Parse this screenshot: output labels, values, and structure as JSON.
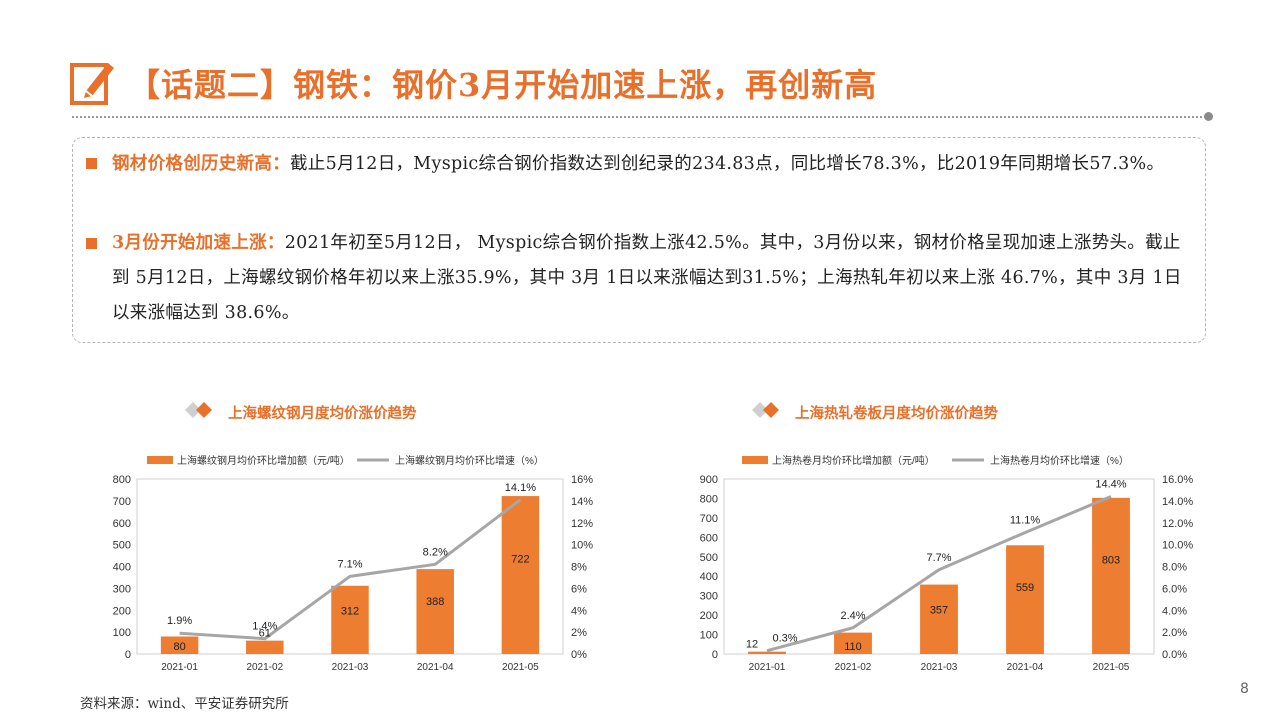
{
  "header": {
    "title": "【话题二】钢铁：钢价3月开始加速上涨，再创新高"
  },
  "bullets": [
    {
      "label": "钢材价格创历史新高：",
      "text": "截止5月12日，Myspic综合钢价指数达到创纪录的234.83点，同比增长78.3%，比2019年同期增长57.3%。"
    },
    {
      "label": "3月份开始加速上涨：",
      "text": "2021年初至5月12日， Myspic综合钢价指数上涨42.5%。其中，3月份以来，钢材价格呈现加速上涨势头。截止到 5月12日，上海螺纹钢价格年初以来上涨35.9%，其中 3月 1日以来涨幅达到31.5%；上海热轧年初以来上涨 46.7%，其中 3月 1日以来涨幅达到 38.6%。"
    }
  ],
  "colors": {
    "accent": "#e8702a",
    "bar": "#ed7d31",
    "line": "#a6a6a6"
  },
  "chart_data": [
    {
      "type": "bar",
      "title": "上海螺纹钢月度均价涨价趋势",
      "categories": [
        "2021-01",
        "2021-02",
        "2021-03",
        "2021-04",
        "2021-05"
      ],
      "series": [
        {
          "name": "上海螺纹钢月均价环比增加额（元/吨）",
          "type": "bar",
          "axis": "left",
          "values": [
            80,
            61,
            312,
            388,
            722
          ],
          "labels": [
            "80",
            "61",
            "312",
            "388",
            "722"
          ]
        },
        {
          "name": "上海螺纹钢月均价环比增速（%）",
          "type": "line",
          "axis": "right",
          "values": [
            1.9,
            1.4,
            7.1,
            8.2,
            14.1
          ],
          "labels": [
            "1.9%",
            "1.4%",
            "7.1%",
            "8.2%",
            "14.1%"
          ]
        }
      ],
      "ylim": [
        0,
        800
      ],
      "y_ticks": [
        "0",
        "100",
        "200",
        "300",
        "400",
        "500",
        "600",
        "700",
        "800"
      ],
      "y2lim": [
        0,
        16
      ],
      "y2_ticks": [
        "0%",
        "2%",
        "4%",
        "6%",
        "8%",
        "10%",
        "12%",
        "14%",
        "16%"
      ]
    },
    {
      "type": "bar",
      "title": "上海热轧卷板月度均价涨价趋势",
      "categories": [
        "2021-01",
        "2021-02",
        "2021-03",
        "2021-04",
        "2021-05"
      ],
      "series": [
        {
          "name": "上海热卷月均价环比增加额（元/吨）",
          "type": "bar",
          "axis": "left",
          "values": [
            12,
            110,
            357,
            559,
            803
          ],
          "labels": [
            "12",
            "110",
            "357",
            "559",
            "803"
          ]
        },
        {
          "name": "上海热卷月均价环比增速（%）",
          "type": "line",
          "axis": "right",
          "values": [
            0.3,
            2.4,
            7.7,
            11.1,
            14.4
          ],
          "labels": [
            "0.3%",
            "2.4%",
            "7.7%",
            "11.1%",
            "14.4%"
          ]
        }
      ],
      "ylim": [
        0,
        900
      ],
      "y_ticks": [
        "0",
        "100",
        "200",
        "300",
        "400",
        "500",
        "600",
        "700",
        "800",
        "900"
      ],
      "y2lim": [
        0,
        16
      ],
      "y2_ticks": [
        "0.0%",
        "2.0%",
        "4.0%",
        "6.0%",
        "8.0%",
        "10.0%",
        "12.0%",
        "14.0%",
        "16.0%"
      ]
    }
  ],
  "footer": {
    "source": "资料来源：wind、平安证券研究所",
    "page": "8"
  }
}
